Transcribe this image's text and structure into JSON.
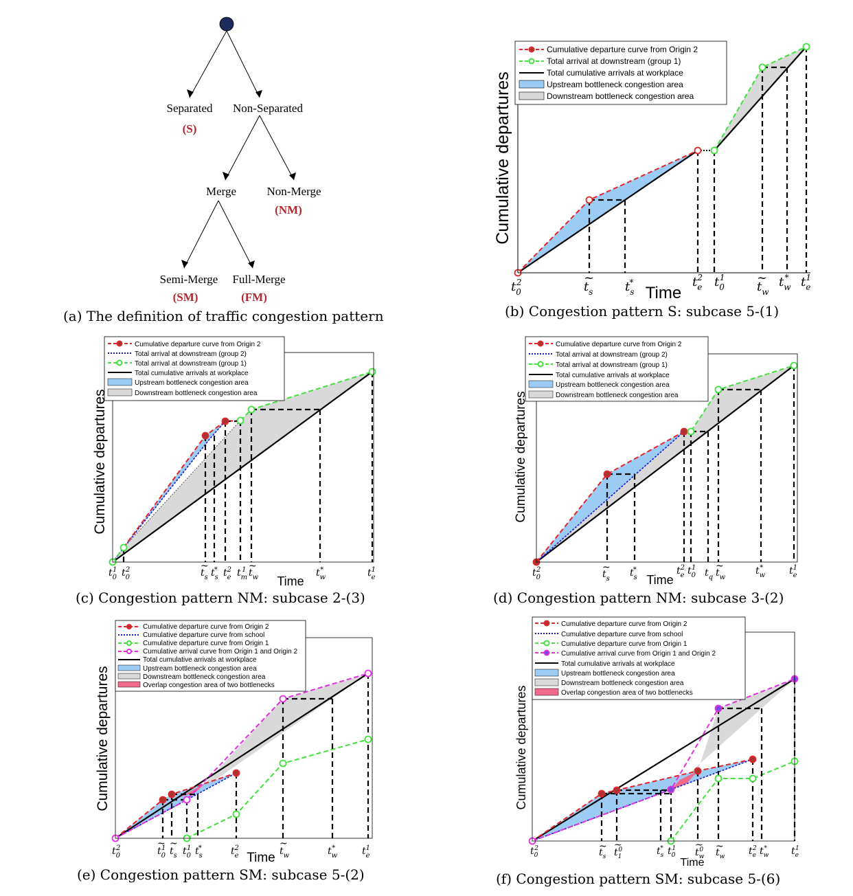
{
  "tree": {
    "separated": "Separated",
    "separated_abbr": "(S)",
    "non_separated": "Non-Separated",
    "merge": "Merge",
    "non_merge": "Non-Merge",
    "non_merge_abbr": "(NM)",
    "semi_merge": "Semi-Merge",
    "semi_merge_abbr": "(SM)",
    "full_merge": "Full-Merge",
    "full_merge_abbr": "(FM)",
    "node_color": "#1f2a5c",
    "abbr_color": "#b0282e"
  },
  "captions": {
    "a": "(a)  The definition of traffic congestion pattern",
    "b": "(b)  Congestion pattern S: subcase 5-(1)",
    "c": "(c)  Congestion pattern NM: subcase 2-(3)",
    "d": "(d)  Congestion pattern NM: subcase 3-(2)",
    "e": "(e)  Congestion pattern SM: subcase 5-(2)",
    "f": "(f)  Congestion pattern SM: subcase 5-(6)"
  },
  "axis": {
    "ylabel": "Cumulative departures",
    "xlabel": "Time"
  },
  "legend": {
    "origin2": "Cumulative departure curve from Origin 2",
    "down_g1": "Total arrival at downstream (group 1)",
    "down_g2": "Total arrival at downstream (group 2)",
    "workplace": "Total cumulative arrivals at workplace",
    "upstream": "Upstream bottleneck congestion area",
    "downstream": "Downstream bottleneck congestion area",
    "school": "Cumulative departure curve from school",
    "origin1": "Cumulative departure curve from Origin 1",
    "o1o2": "Cumulative arrival curve from Origin 1 and Origin 2",
    "overlap": "Overlap congestion area of two bottlenecks"
  },
  "colors": {
    "upstream_fill": "#9ccbf3",
    "downstream_fill": "#d9d9d9",
    "overlap_fill": "#f06a8c",
    "red": "#e0262b",
    "green": "#3fe23a",
    "blue": "#1a1ad6",
    "magenta": "#e22fe0"
  },
  "chart_data": [
    {
      "panel": "b",
      "type": "line",
      "x_ticks": [
        "t_0^2",
        "~t_s",
        "t_s^*",
        "t_e^2",
        "t_0^1",
        "~t_w",
        "t_w^*",
        "t_e^1"
      ],
      "series": [
        {
          "name": "Cumulative departure curve from Origin 2",
          "points": [
            [
              0,
              0
            ],
            [
              1,
              0.3
            ],
            [
              3,
              0.53
            ]
          ]
        },
        {
          "name": "Total arrival at downstream (group 1)",
          "points": [
            [
              3.2,
              0.53
            ],
            [
              4,
              0.9
            ],
            [
              5,
              1
            ]
          ]
        },
        {
          "name": "Total cumulative arrivals at workplace",
          "points": [
            [
              0,
              0
            ],
            [
              5,
              1
            ]
          ]
        }
      ]
    },
    {
      "panel": "c",
      "type": "line",
      "x_ticks": [
        "t_0^1",
        "t_0^2",
        "~t_s",
        "t_s^*",
        "t_e^2",
        "t_m^1",
        "~t_w",
        "t_w^*",
        "t_e^1"
      ]
    },
    {
      "panel": "d",
      "type": "line",
      "x_ticks": [
        "t_0^2",
        "~t_s",
        "t_s^*",
        "t_e^2",
        "t_0^1",
        "t_q",
        "~t_w",
        "t_w^*",
        "t_e^1"
      ]
    },
    {
      "panel": "e",
      "type": "line",
      "x_ticks": [
        "t_0^2",
        "~t_0^1",
        "~t_s",
        "t_0^1",
        "t_s^*",
        "t_e^2",
        "~t_w",
        "t_w^*",
        "t_e^1"
      ]
    },
    {
      "panel": "f",
      "type": "line",
      "x_ticks": [
        "t_0^2",
        "~t_s",
        "~t_1^0",
        "t_s^*",
        "t_0^1",
        "~t_w^0",
        "~t_w",
        "t_e^2",
        "t_w^*",
        "t_e^1"
      ]
    }
  ]
}
